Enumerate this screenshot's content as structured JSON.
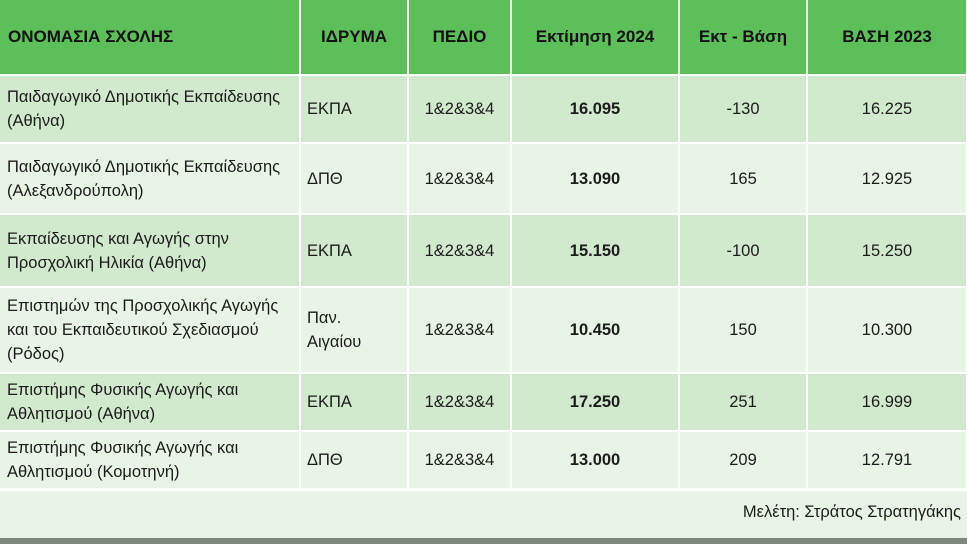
{
  "table": {
    "headers": [
      "ΟΝΟΜΑΣΙΑ ΣΧΟΛΗΣ",
      "ΙΔΡΥΜΑ",
      "ΠΕΔΙΟ",
      "Εκτίμηση  2024",
      "Εκτ - Βάση",
      "ΒΑΣΗ 2023"
    ],
    "rows": [
      {
        "school": "Παιδαγωγικό Δημοτικής Εκπαίδευσης (Αθήνα)",
        "institution": "ΕΚΠΑ",
        "field": "1&2&3&4",
        "estimate": "16.095",
        "diff": "-130",
        "base": "16.225"
      },
      {
        "school": "Παιδαγωγικό Δημοτικής Εκπαίδευσης (Αλεξανδρούπολη)",
        "institution": "ΔΠΘ",
        "field": "1&2&3&4",
        "estimate": "13.090",
        "diff": "165",
        "base": "12.925"
      },
      {
        "school": "Εκπαίδευσης και Αγωγής στην Προσχολική Ηλικία (Αθήνα)",
        "institution": "ΕΚΠΑ",
        "field": "1&2&3&4",
        "estimate": "15.150",
        "diff": "-100",
        "base": "15.250"
      },
      {
        "school": "Επιστημών της Προσχολικής Αγωγής και του Εκπαιδευτικού Σχεδιασμού (Ρόδος)",
        "institution": "Παν. Αιγαίου",
        "field": "1&2&3&4",
        "estimate": "10.450",
        "diff": "150",
        "base": "10.300"
      },
      {
        "school": "Επιστήμης Φυσικής Αγωγής και Αθλητισμού (Αθήνα)",
        "institution": "ΕΚΠΑ",
        "field": "1&2&3&4",
        "estimate": "17.250",
        "diff": "251",
        "base": "16.999"
      },
      {
        "school": "Επιστήμης Φυσικής Αγωγής και Αθλητισμού (Κομοτηνή)",
        "institution": "ΔΠΘ",
        "field": "1&2&3&4",
        "estimate": "13.000",
        "diff": "209",
        "base": "12.791"
      }
    ]
  },
  "credit": "Μελέτη: Στράτος Στρατηγάκης",
  "colors": {
    "header": "#5cbf5a",
    "row_dark": "#d1e9cc",
    "row_light": "#e8f4e5"
  }
}
